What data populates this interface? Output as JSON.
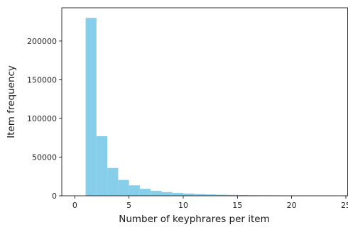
{
  "chart_data": {
    "type": "bar",
    "title": "",
    "xlabel": "Number of keyphrares per item",
    "ylabel": "Item frequency",
    "xlim": [
      -1.2,
      25.2
    ],
    "ylim": [
      0,
      243000
    ],
    "bin_width": 1,
    "bins": [
      {
        "x0": 1,
        "x1": 2,
        "value": 230000
      },
      {
        "x0": 2,
        "x1": 3,
        "value": 77000
      },
      {
        "x0": 3,
        "x1": 4,
        "value": 36000
      },
      {
        "x0": 4,
        "x1": 5,
        "value": 20500
      },
      {
        "x0": 5,
        "x1": 6,
        "value": 13500
      },
      {
        "x0": 6,
        "x1": 7,
        "value": 9000
      },
      {
        "x0": 7,
        "x1": 8,
        "value": 6500
      },
      {
        "x0": 8,
        "x1": 9,
        "value": 4800
      },
      {
        "x0": 9,
        "x1": 10,
        "value": 3800
      },
      {
        "x0": 10,
        "x1": 11,
        "value": 3000
      },
      {
        "x0": 11,
        "x1": 12,
        "value": 2300
      },
      {
        "x0": 12,
        "x1": 13,
        "value": 1800
      },
      {
        "x0": 13,
        "x1": 14,
        "value": 1400
      },
      {
        "x0": 14,
        "x1": 15,
        "value": 1100
      },
      {
        "x0": 15,
        "x1": 16,
        "value": 900
      },
      {
        "x0": 16,
        "x1": 17,
        "value": 700
      },
      {
        "x0": 17,
        "x1": 18,
        "value": 600
      },
      {
        "x0": 18,
        "x1": 19,
        "value": 500
      },
      {
        "x0": 19,
        "x1": 20,
        "value": 400
      },
      {
        "x0": 20,
        "x1": 21,
        "value": 350
      },
      {
        "x0": 21,
        "x1": 22,
        "value": 300
      },
      {
        "x0": 22,
        "x1": 23,
        "value": 250
      },
      {
        "x0": 23,
        "x1": 24,
        "value": 200
      }
    ],
    "x_ticks": [
      0,
      5,
      10,
      15,
      20,
      25
    ],
    "x_tick_labels": [
      "0",
      "5",
      "10",
      "15",
      "20",
      "25"
    ],
    "y_ticks": [
      0,
      50000,
      100000,
      150000,
      200000
    ],
    "y_tick_labels": [
      "0",
      "50000",
      "100000",
      "150000",
      "200000"
    ],
    "grid": false,
    "legend": "none",
    "bar_color": "#87CEEB",
    "axis_color": "#000000"
  }
}
